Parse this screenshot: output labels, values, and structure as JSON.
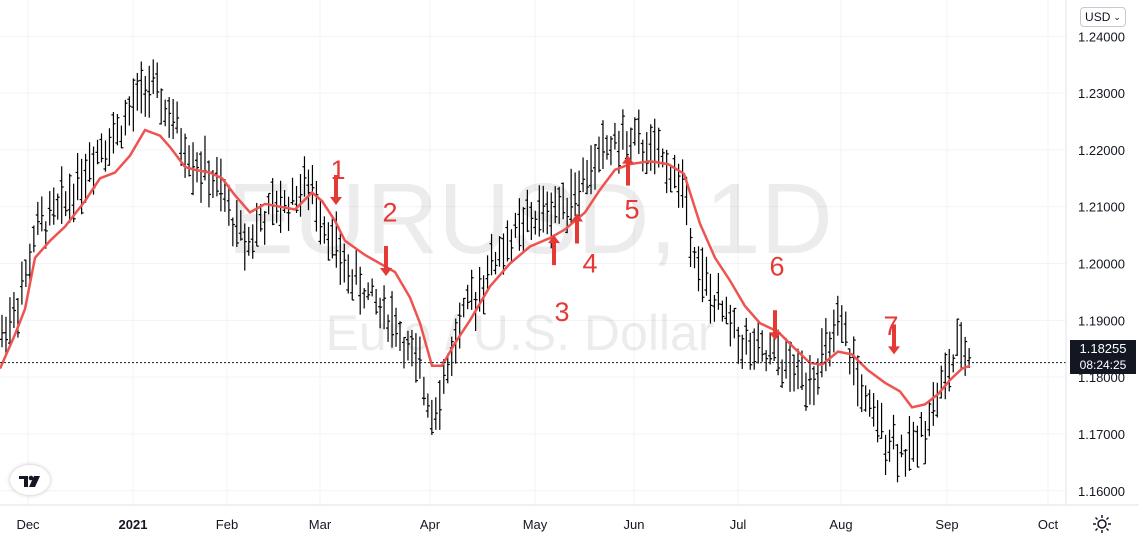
{
  "currency_button": {
    "label": "USD",
    "icon": "chevron-down-icon"
  },
  "watermark": {
    "symbol": "EURUSD, 1D",
    "description": "Euro / U.S. Dollar"
  },
  "price_label": {
    "price": "1.18255",
    "countdown": "08:24:25"
  },
  "settings_icon": "sun-icon",
  "chart_data": {
    "type": "ohlc",
    "title": "EURUSD, 1D",
    "subtitle": "Euro / U.S. Dollar",
    "y_axis": {
      "ticks": [
        "1.16000",
        "1.17000",
        "1.18000",
        "1.19000",
        "1.20000",
        "1.21000",
        "1.22000",
        "1.23000",
        "1.24000"
      ],
      "range": [
        1.1575,
        1.2455
      ],
      "position": "right"
    },
    "x_axis": {
      "ticks": [
        "Dec",
        "2021",
        "Feb",
        "Mar",
        "Apr",
        "May",
        "Jun",
        "Jul",
        "Aug",
        "Sep",
        "Oct"
      ]
    },
    "current_price": 1.18255,
    "colors": {
      "bars": "#000000",
      "moving_average": "#ef5350",
      "annotations": "#e53935"
    },
    "series": [
      {
        "name": "",
        "kind": "moving_average",
        "points": [
          [
            0,
            1.1815
          ],
          [
            15,
            1.1875
          ],
          [
            25,
            1.192
          ],
          [
            35,
            1.201
          ],
          [
            50,
            1.204
          ],
          [
            65,
            1.2065
          ],
          [
            85,
            1.211
          ],
          [
            100,
            1.215
          ],
          [
            115,
            1.216
          ],
          [
            130,
            1.219
          ],
          [
            145,
            1.2235
          ],
          [
            160,
            1.2225
          ],
          [
            170,
            1.2205
          ],
          [
            185,
            1.217
          ],
          [
            195,
            1.2165
          ],
          [
            210,
            1.216
          ],
          [
            222,
            1.215
          ],
          [
            235,
            1.212
          ],
          [
            250,
            1.209
          ],
          [
            265,
            1.2105
          ],
          [
            280,
            1.21
          ],
          [
            295,
            1.2095
          ],
          [
            312,
            1.2125
          ],
          [
            322,
            1.211
          ],
          [
            335,
            1.2075
          ],
          [
            345,
            1.204
          ],
          [
            365,
            1.2015
          ],
          [
            380,
            1.2
          ],
          [
            395,
            1.1985
          ],
          [
            410,
            1.194
          ],
          [
            420,
            1.1895
          ],
          [
            432,
            1.182
          ],
          [
            442,
            1.182
          ],
          [
            455,
            1.186
          ],
          [
            470,
            1.19
          ],
          [
            490,
            1.196
          ],
          [
            510,
            1.2
          ],
          [
            530,
            1.203
          ],
          [
            550,
            1.2045
          ],
          [
            565,
            1.206
          ],
          [
            585,
            1.209
          ],
          [
            600,
            1.213
          ],
          [
            615,
            1.2165
          ],
          [
            630,
            1.2175
          ],
          [
            650,
            1.218
          ],
          [
            668,
            1.2175
          ],
          [
            684,
            1.2158
          ],
          [
            690,
            1.2125
          ],
          [
            700,
            1.207
          ],
          [
            715,
            1.201
          ],
          [
            730,
            1.197
          ],
          [
            745,
            1.1925
          ],
          [
            760,
            1.1895
          ],
          [
            778,
            1.188
          ],
          [
            795,
            1.185
          ],
          [
            810,
            1.1825
          ],
          [
            822,
            1.1822
          ],
          [
            838,
            1.1845
          ],
          [
            852,
            1.184
          ],
          [
            868,
            1.1812
          ],
          [
            885,
            1.179
          ],
          [
            900,
            1.1775
          ],
          [
            912,
            1.1747
          ],
          [
            925,
            1.1752
          ],
          [
            938,
            1.177
          ],
          [
            950,
            1.1795
          ],
          [
            962,
            1.1815
          ],
          [
            970,
            1.182
          ]
        ]
      },
      {
        "name": "",
        "kind": "ohlc_daily",
        "count": 244,
        "range": [
          1.1665,
          1.235
        ]
      }
    ],
    "annotations": [
      {
        "text": "1",
        "x": 1.2165
      },
      {
        "text": "2",
        "x": 1.209
      },
      {
        "text": "3",
        "x": 1.1915
      },
      {
        "text": "4",
        "x": 1.2
      },
      {
        "text": "5",
        "x": 1.2095
      },
      {
        "text": "6",
        "x": 1.1995
      },
      {
        "text": "7",
        "x": 1.189
      }
    ],
    "arrows": [
      {
        "direction": "down",
        "at": 1.2103
      },
      {
        "direction": "down",
        "at": 1.1978
      },
      {
        "direction": "up",
        "at": 1.205
      },
      {
        "direction": "up",
        "at": 1.2088
      },
      {
        "direction": "up",
        "at": 1.219
      },
      {
        "direction": "down",
        "at": 1.1865
      },
      {
        "direction": "down",
        "at": 1.184
      }
    ]
  }
}
